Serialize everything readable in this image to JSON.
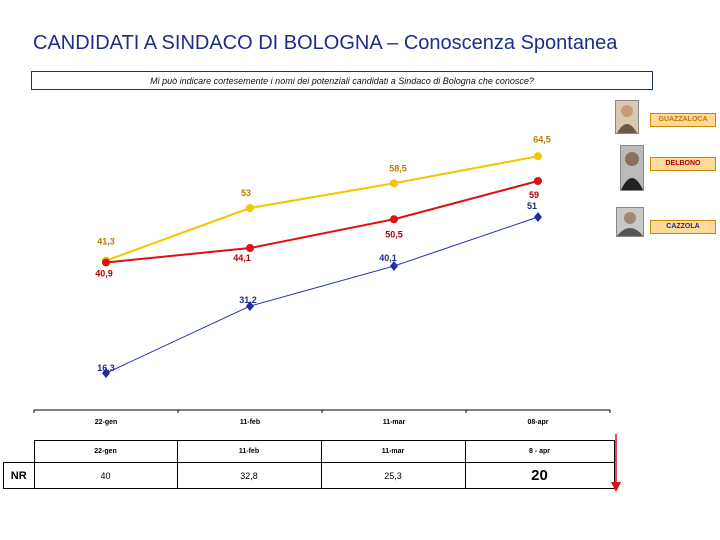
{
  "title_main": "CANDIDATI A SINDACO DI BOLOGNA",
  "title_dash": "–",
  "title_sub": "Conoscenza Spontanea",
  "question": "Mi può indicare cortesemente i nomi dei potenziali candidati a Sindaco di Bologna che conosce?",
  "candidates": [
    {
      "name": "GUAZZALOCA",
      "color": "#f5c400",
      "text_color": "#c07800"
    },
    {
      "name": "DELBONO",
      "color": "#dd1111",
      "text_color": "#b00000"
    },
    {
      "name": "CAZZOLA",
      "color": "#1f2daa",
      "text_color": "#1f2d8a"
    }
  ],
  "chart_data": {
    "type": "line",
    "categories": [
      "22-gen",
      "11-feb",
      "11-mar",
      "08-apr"
    ],
    "series": [
      {
        "name": "GUAZZALOCA",
        "values": [
          41.3,
          53,
          58.5,
          64.5
        ],
        "labels": [
          "41,3",
          "53",
          "58,5",
          "64,5"
        ],
        "color": "#f5c400"
      },
      {
        "name": "DELBONO",
        "values": [
          40.9,
          44.1,
          50.5,
          59
        ],
        "labels": [
          "40,9",
          "44,1",
          "50,5",
          "59"
        ],
        "color": "#dd1111"
      },
      {
        "name": "CAZZOLA",
        "values": [
          16.3,
          31.2,
          40.1,
          51
        ],
        "labels": [
          "16,3",
          "31,2",
          "40,1",
          "51"
        ],
        "color": "#1f2daa"
      }
    ],
    "ylim": [
      10,
      70
    ]
  },
  "nr_table": {
    "row_label": "NR",
    "headers": [
      "22-gen",
      "11-feb",
      "11-mar",
      "8 - apr"
    ],
    "values": [
      "40",
      "32,8",
      "25,3",
      "20"
    ]
  }
}
